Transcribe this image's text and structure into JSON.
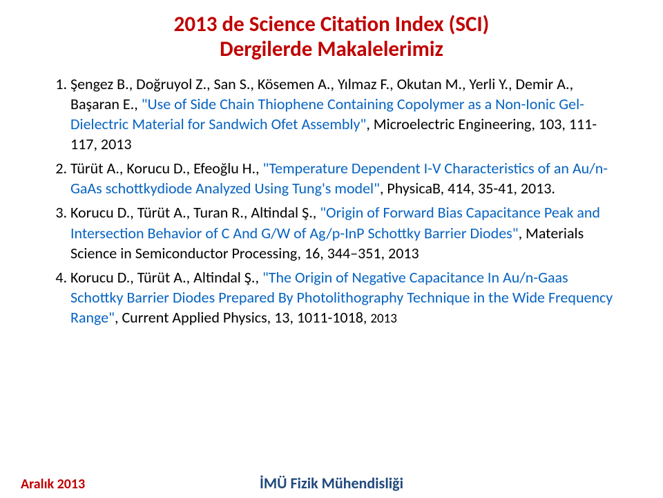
{
  "colors": {
    "title": "#c00000",
    "link": "#0563c1",
    "black": "#000000",
    "footer_left": "#c00000",
    "footer_center": "#1f497d"
  },
  "fontsizes": {
    "title": 31,
    "body": 22,
    "footer": 20
  },
  "title": {
    "line1": "2013 de Science Citation Index (SCI)",
    "line2": "Dergilerde Makalelerimiz"
  },
  "refs": [
    {
      "authors": "Şengez B., Doğruyol Z., San S., Kösemen A., Yılmaz F., Okutan M., Yerli Y., Demir A., Başaran E., ",
      "title_quoted": "\"Use of Side Chain Thiophene Containing Copolymer as a Non-Ionic Gel-Dielectric Material for Sandwich Ofet Assembly\"",
      "tail": ", Microelectric Engineering, 103, 111-117, 2013"
    },
    {
      "authors": "Türüt A., Korucu D., Efeoğlu H., ",
      "title_quoted": "\"Temperature Dependent I-V Characteristics of an Au/n-GaAs schottkydiode Analyzed Using Tung's model\"",
      "tail": ", PhysicaB, 414, 35-41, 2013."
    },
    {
      "authors": "Korucu D., Türüt A., Turan R., Altindal Ş., ",
      "title_quoted": "\"Origin of Forward Bias Capacitance Peak and Intersection Behavior of C And G/W of Ag/p-InP Schottky Barrier Diodes\"",
      "tail": ", Materials Science in Semiconductor Processing, 16, 344–351, 2013"
    },
    {
      "authors": "Korucu D., Türüt A., Altindal Ş., ",
      "title_quoted": "\"The Origin of Negative Capacitance In Au/n-Gaas Schottky Barrier Diodes Prepared By Photolithography Technique in the Wide Frequency Range\"",
      "tail": ", Current Applied Physics, 13, 1011-1018, ",
      "tail_small": "2013"
    }
  ],
  "footer": {
    "left": "Aralık 2013",
    "center": "İMÜ Fizik Mühendisliği"
  }
}
